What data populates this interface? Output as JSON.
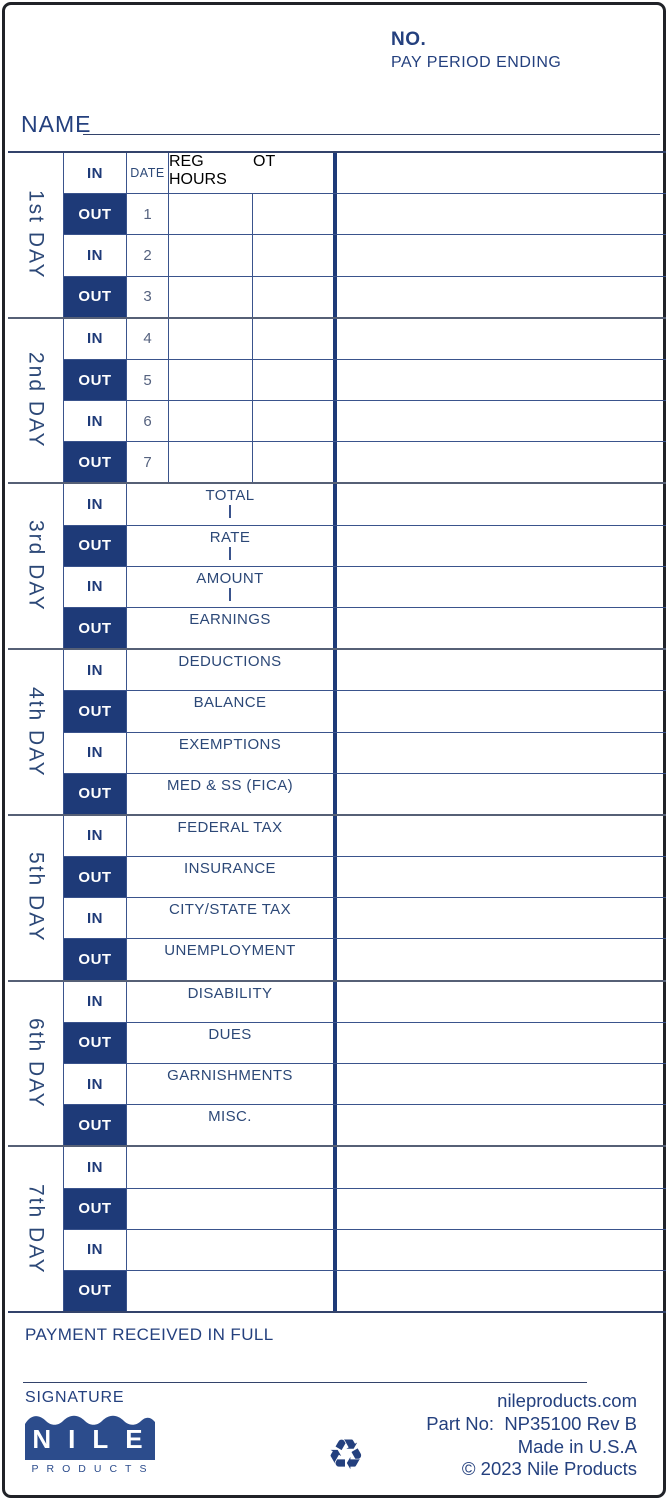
{
  "colors": {
    "navy": "#1e3a78",
    "ink": "#24407e",
    "logo_blue": "#2c4c8c"
  },
  "header": {
    "no_label": "NO.",
    "pay_period_label": "PAY PERIOD ENDING",
    "name_label": "NAME"
  },
  "table": {
    "column_headers": {
      "in": "IN",
      "date": "DATE",
      "reg_hours": "REG HOURS",
      "ot": "OT"
    },
    "days": [
      {
        "label": "1st DAY",
        "rows": [
          {
            "punch": "IN",
            "header": true
          },
          {
            "punch": "OUT",
            "date": "1"
          },
          {
            "punch": "IN",
            "date": "2"
          },
          {
            "punch": "OUT",
            "date": "3"
          }
        ]
      },
      {
        "label": "2nd DAY",
        "rows": [
          {
            "punch": "IN",
            "date": "4"
          },
          {
            "punch": "OUT",
            "date": "5"
          },
          {
            "punch": "IN",
            "date": "6"
          },
          {
            "punch": "OUT",
            "date": "7"
          }
        ]
      },
      {
        "label": "3rd DAY",
        "rows": [
          {
            "punch": "IN",
            "label": "TOTAL",
            "tick": true
          },
          {
            "punch": "OUT",
            "label": "RATE",
            "tick": true
          },
          {
            "punch": "IN",
            "label": "AMOUNT",
            "tick": true
          },
          {
            "punch": "OUT",
            "label": "EARNINGS"
          }
        ]
      },
      {
        "label": "4th DAY",
        "rows": [
          {
            "punch": "IN",
            "label": "DEDUCTIONS"
          },
          {
            "punch": "OUT",
            "label": "BALANCE"
          },
          {
            "punch": "IN",
            "label": "EXEMPTIONS"
          },
          {
            "punch": "OUT",
            "label": "MED & SS (FICA)"
          }
        ]
      },
      {
        "label": "5th DAY",
        "rows": [
          {
            "punch": "IN",
            "label": "FEDERAL TAX"
          },
          {
            "punch": "OUT",
            "label": "INSURANCE"
          },
          {
            "punch": "IN",
            "label": "CITY/STATE TAX"
          },
          {
            "punch": "OUT",
            "label": "UNEMPLOYMENT"
          }
        ]
      },
      {
        "label": "6th DAY",
        "rows": [
          {
            "punch": "IN",
            "label": "DISABILITY"
          },
          {
            "punch": "OUT",
            "label": "DUES"
          },
          {
            "punch": "IN",
            "label": "GARNISHMENTS"
          },
          {
            "punch": "OUT",
            "label": "MISC."
          }
        ]
      },
      {
        "label": "7th DAY",
        "rows": [
          {
            "punch": "IN"
          },
          {
            "punch": "OUT"
          },
          {
            "punch": "IN"
          },
          {
            "punch": "OUT"
          }
        ]
      }
    ]
  },
  "footer": {
    "payment_label": "PAYMENT RECEIVED IN FULL",
    "signature_label": "SIGNATURE",
    "brand": {
      "name": "NILE",
      "subtitle": "PRODUCTS"
    },
    "recycle_icon": "♻",
    "website": "nileproducts.com",
    "part_no": "Part No:  NP35100 Rev B",
    "made_in": "Made in U.S.A",
    "copyright": "© 2023 Nile Products"
  }
}
